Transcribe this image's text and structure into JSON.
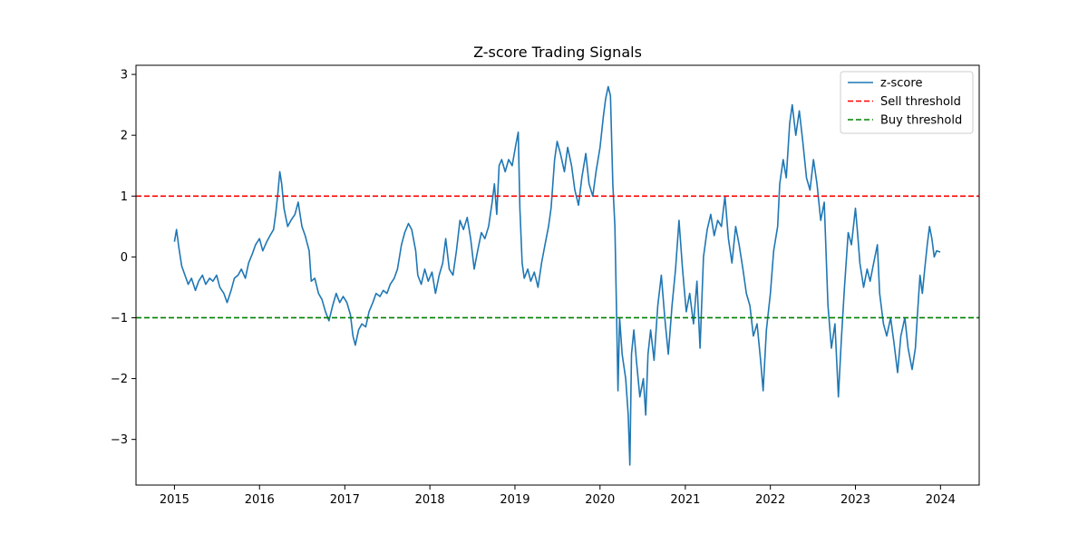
{
  "chart_data": {
    "type": "line",
    "title": "Z-score Trading Signals",
    "xlabel": "",
    "ylabel": "",
    "xlim": [
      "2014-07-20",
      "2024-06-15"
    ],
    "ylim": [
      -3.75,
      3.15
    ],
    "x_ticks": [
      "2015",
      "2016",
      "2017",
      "2018",
      "2019",
      "2020",
      "2021",
      "2022",
      "2023",
      "2024"
    ],
    "y_ticks": [
      3,
      2,
      1,
      0,
      -1,
      -2,
      -3
    ],
    "y_tick_labels": [
      "3",
      "2",
      "1",
      "0",
      "−1",
      "−2",
      "−3"
    ],
    "grid": false,
    "legend_position": "top-right",
    "series": [
      {
        "name": "z-score",
        "color": "#1f77b4",
        "style": "solid",
        "points": [
          [
            "2015-01-01",
            0.25
          ],
          [
            "2015-01-10",
            0.45
          ],
          [
            "2015-01-20",
            0.15
          ],
          [
            "2015-02-01",
            -0.15
          ],
          [
            "2015-02-15",
            -0.3
          ],
          [
            "2015-03-01",
            -0.45
          ],
          [
            "2015-03-15",
            -0.35
          ],
          [
            "2015-04-01",
            -0.55
          ],
          [
            "2015-04-15",
            -0.4
          ],
          [
            "2015-05-01",
            -0.3
          ],
          [
            "2015-05-15",
            -0.45
          ],
          [
            "2015-06-01",
            -0.35
          ],
          [
            "2015-06-15",
            -0.4
          ],
          [
            "2015-07-01",
            -0.3
          ],
          [
            "2015-07-15",
            -0.5
          ],
          [
            "2015-08-01",
            -0.6
          ],
          [
            "2015-08-15",
            -0.75
          ],
          [
            "2015-09-01",
            -0.55
          ],
          [
            "2015-09-15",
            -0.35
          ],
          [
            "2015-10-01",
            -0.3
          ],
          [
            "2015-10-15",
            -0.2
          ],
          [
            "2015-11-01",
            -0.35
          ],
          [
            "2015-11-15",
            -0.1
          ],
          [
            "2015-12-01",
            0.05
          ],
          [
            "2015-12-15",
            0.2
          ],
          [
            "2016-01-01",
            0.3
          ],
          [
            "2016-01-15",
            0.1
          ],
          [
            "2016-02-01",
            0.25
          ],
          [
            "2016-02-15",
            0.35
          ],
          [
            "2016-03-01",
            0.45
          ],
          [
            "2016-03-10",
            0.7
          ],
          [
            "2016-03-20",
            1.05
          ],
          [
            "2016-03-28",
            1.4
          ],
          [
            "2016-04-05",
            1.2
          ],
          [
            "2016-04-15",
            0.8
          ],
          [
            "2016-05-01",
            0.5
          ],
          [
            "2016-05-15",
            0.6
          ],
          [
            "2016-06-01",
            0.7
          ],
          [
            "2016-06-15",
            0.9
          ],
          [
            "2016-07-01",
            0.5
          ],
          [
            "2016-07-15",
            0.35
          ],
          [
            "2016-08-01",
            0.1
          ],
          [
            "2016-08-10",
            -0.4
          ],
          [
            "2016-08-25",
            -0.35
          ],
          [
            "2016-09-10",
            -0.6
          ],
          [
            "2016-09-25",
            -0.7
          ],
          [
            "2016-10-10",
            -0.9
          ],
          [
            "2016-10-25",
            -1.05
          ],
          [
            "2016-11-10",
            -0.8
          ],
          [
            "2016-11-25",
            -0.6
          ],
          [
            "2016-12-10",
            -0.75
          ],
          [
            "2016-12-25",
            -0.65
          ],
          [
            "2017-01-10",
            -0.75
          ],
          [
            "2017-01-25",
            -0.95
          ],
          [
            "2017-02-05",
            -1.3
          ],
          [
            "2017-02-15",
            -1.45
          ],
          [
            "2017-03-01",
            -1.2
          ],
          [
            "2017-03-15",
            -1.1
          ],
          [
            "2017-04-01",
            -1.15
          ],
          [
            "2017-04-15",
            -0.9
          ],
          [
            "2017-05-01",
            -0.75
          ],
          [
            "2017-05-15",
            -0.6
          ],
          [
            "2017-06-01",
            -0.65
          ],
          [
            "2017-06-15",
            -0.55
          ],
          [
            "2017-07-01",
            -0.6
          ],
          [
            "2017-07-15",
            -0.45
          ],
          [
            "2017-08-01",
            -0.35
          ],
          [
            "2017-08-15",
            -0.2
          ],
          [
            "2017-09-01",
            0.2
          ],
          [
            "2017-09-15",
            0.4
          ],
          [
            "2017-10-01",
            0.55
          ],
          [
            "2017-10-15",
            0.45
          ],
          [
            "2017-11-01",
            0.1
          ],
          [
            "2017-11-10",
            -0.3
          ],
          [
            "2017-11-25",
            -0.45
          ],
          [
            "2017-12-10",
            -0.2
          ],
          [
            "2017-12-25",
            -0.4
          ],
          [
            "2018-01-10",
            -0.25
          ],
          [
            "2018-01-25",
            -0.6
          ],
          [
            "2018-02-10",
            -0.3
          ],
          [
            "2018-02-25",
            -0.1
          ],
          [
            "2018-03-10",
            0.3
          ],
          [
            "2018-03-25",
            -0.2
          ],
          [
            "2018-04-10",
            -0.3
          ],
          [
            "2018-04-25",
            0.1
          ],
          [
            "2018-05-10",
            0.6
          ],
          [
            "2018-05-25",
            0.45
          ],
          [
            "2018-06-10",
            0.65
          ],
          [
            "2018-06-25",
            0.3
          ],
          [
            "2018-07-10",
            -0.2
          ],
          [
            "2018-07-25",
            0.1
          ],
          [
            "2018-08-10",
            0.4
          ],
          [
            "2018-08-25",
            0.3
          ],
          [
            "2018-09-10",
            0.5
          ],
          [
            "2018-09-25",
            0.9
          ],
          [
            "2018-10-05",
            1.2
          ],
          [
            "2018-10-15",
            0.7
          ],
          [
            "2018-10-25",
            1.5
          ],
          [
            "2018-11-05",
            1.6
          ],
          [
            "2018-11-20",
            1.4
          ],
          [
            "2018-12-05",
            1.6
          ],
          [
            "2018-12-20",
            1.5
          ],
          [
            "2019-01-05",
            1.85
          ],
          [
            "2019-01-15",
            2.05
          ],
          [
            "2019-01-22",
            0.8
          ],
          [
            "2019-02-01",
            -0.1
          ],
          [
            "2019-02-10",
            -0.35
          ],
          [
            "2019-02-25",
            -0.2
          ],
          [
            "2019-03-10",
            -0.4
          ],
          [
            "2019-03-25",
            -0.25
          ],
          [
            "2019-04-10",
            -0.5
          ],
          [
            "2019-04-25",
            -0.1
          ],
          [
            "2019-05-10",
            0.2
          ],
          [
            "2019-05-25",
            0.5
          ],
          [
            "2019-06-05",
            0.8
          ],
          [
            "2019-06-20",
            1.6
          ],
          [
            "2019-07-01",
            1.9
          ],
          [
            "2019-07-15",
            1.7
          ],
          [
            "2019-08-01",
            1.4
          ],
          [
            "2019-08-15",
            1.8
          ],
          [
            "2019-09-01",
            1.5
          ],
          [
            "2019-09-15",
            1.1
          ],
          [
            "2019-10-01",
            0.85
          ],
          [
            "2019-10-15",
            1.3
          ],
          [
            "2019-11-01",
            1.7
          ],
          [
            "2019-11-15",
            1.2
          ],
          [
            "2019-12-01",
            1.0
          ],
          [
            "2019-12-15",
            1.4
          ],
          [
            "2020-01-01",
            1.8
          ],
          [
            "2020-01-15",
            2.3
          ],
          [
            "2020-01-25",
            2.6
          ],
          [
            "2020-02-05",
            2.8
          ],
          [
            "2020-02-15",
            2.65
          ],
          [
            "2020-02-25",
            1.2
          ],
          [
            "2020-03-05",
            0.5
          ],
          [
            "2020-03-12",
            -0.9
          ],
          [
            "2020-03-18",
            -2.2
          ],
          [
            "2020-03-25",
            -1.0
          ],
          [
            "2020-04-05",
            -1.6
          ],
          [
            "2020-04-20",
            -2.0
          ],
          [
            "2020-05-01",
            -2.6
          ],
          [
            "2020-05-08",
            -3.42
          ],
          [
            "2020-05-15",
            -1.6
          ],
          [
            "2020-05-25",
            -1.2
          ],
          [
            "2020-06-05",
            -1.7
          ],
          [
            "2020-06-20",
            -2.3
          ],
          [
            "2020-07-05",
            -2.0
          ],
          [
            "2020-07-15",
            -2.6
          ],
          [
            "2020-07-25",
            -1.6
          ],
          [
            "2020-08-05",
            -1.2
          ],
          [
            "2020-08-20",
            -1.7
          ],
          [
            "2020-09-05",
            -0.8
          ],
          [
            "2020-09-20",
            -0.3
          ],
          [
            "2020-10-05",
            -1.0
          ],
          [
            "2020-10-20",
            -1.6
          ],
          [
            "2020-11-05",
            -0.8
          ],
          [
            "2020-11-20",
            -0.2
          ],
          [
            "2020-12-05",
            0.6
          ],
          [
            "2020-12-20",
            -0.2
          ],
          [
            "2021-01-05",
            -0.9
          ],
          [
            "2021-01-20",
            -0.6
          ],
          [
            "2021-02-05",
            -1.1
          ],
          [
            "2021-02-20",
            -0.4
          ],
          [
            "2021-03-05",
            -1.5
          ],
          [
            "2021-03-20",
            0.0
          ],
          [
            "2021-04-05",
            0.45
          ],
          [
            "2021-04-20",
            0.7
          ],
          [
            "2021-05-05",
            0.35
          ],
          [
            "2021-05-20",
            0.6
          ],
          [
            "2021-06-05",
            0.5
          ],
          [
            "2021-06-20",
            1.0
          ],
          [
            "2021-07-05",
            0.3
          ],
          [
            "2021-07-20",
            -0.1
          ],
          [
            "2021-08-05",
            0.5
          ],
          [
            "2021-08-20",
            0.2
          ],
          [
            "2021-09-05",
            -0.2
          ],
          [
            "2021-09-20",
            -0.6
          ],
          [
            "2021-10-05",
            -0.8
          ],
          [
            "2021-10-20",
            -1.3
          ],
          [
            "2021-11-05",
            -1.1
          ],
          [
            "2021-11-20",
            -1.7
          ],
          [
            "2021-12-01",
            -2.2
          ],
          [
            "2021-12-15",
            -1.2
          ],
          [
            "2022-01-01",
            -0.6
          ],
          [
            "2022-01-15",
            0.1
          ],
          [
            "2022-02-01",
            0.5
          ],
          [
            "2022-02-10",
            1.2
          ],
          [
            "2022-02-25",
            1.6
          ],
          [
            "2022-03-10",
            1.3
          ],
          [
            "2022-03-25",
            2.2
          ],
          [
            "2022-04-05",
            2.5
          ],
          [
            "2022-04-20",
            2.0
          ],
          [
            "2022-05-05",
            2.4
          ],
          [
            "2022-05-20",
            1.9
          ],
          [
            "2022-06-05",
            1.3
          ],
          [
            "2022-06-20",
            1.1
          ],
          [
            "2022-07-05",
            1.6
          ],
          [
            "2022-07-20",
            1.2
          ],
          [
            "2022-08-05",
            0.6
          ],
          [
            "2022-08-20",
            0.9
          ],
          [
            "2022-09-05",
            -0.8
          ],
          [
            "2022-09-20",
            -1.5
          ],
          [
            "2022-10-05",
            -1.1
          ],
          [
            "2022-10-20",
            -2.3
          ],
          [
            "2022-11-01",
            -1.4
          ],
          [
            "2022-11-15",
            -0.5
          ],
          [
            "2022-12-01",
            0.4
          ],
          [
            "2022-12-15",
            0.2
          ],
          [
            "2023-01-01",
            0.8
          ],
          [
            "2023-01-10",
            0.4
          ],
          [
            "2023-01-20",
            -0.1
          ],
          [
            "2023-02-05",
            -0.5
          ],
          [
            "2023-02-20",
            -0.2
          ],
          [
            "2023-03-05",
            -0.4
          ],
          [
            "2023-03-20",
            -0.1
          ],
          [
            "2023-04-05",
            0.2
          ],
          [
            "2023-04-15",
            -0.6
          ],
          [
            "2023-05-01",
            -1.1
          ],
          [
            "2023-05-15",
            -1.3
          ],
          [
            "2023-06-01",
            -1.0
          ],
          [
            "2023-06-15",
            -1.4
          ],
          [
            "2023-07-01",
            -1.9
          ],
          [
            "2023-07-15",
            -1.3
          ],
          [
            "2023-08-01",
            -1.0
          ],
          [
            "2023-08-15",
            -1.5
          ],
          [
            "2023-09-01",
            -1.85
          ],
          [
            "2023-09-15",
            -1.5
          ],
          [
            "2023-09-25",
            -0.9
          ],
          [
            "2023-10-05",
            -0.3
          ],
          [
            "2023-10-15",
            -0.6
          ],
          [
            "2023-10-25",
            -0.2
          ],
          [
            "2023-11-05",
            0.2
          ],
          [
            "2023-11-15",
            0.5
          ],
          [
            "2023-11-25",
            0.3
          ],
          [
            "2023-12-05",
            0.0
          ],
          [
            "2023-12-15",
            0.1
          ],
          [
            "2023-12-31",
            0.08
          ]
        ]
      },
      {
        "name": "Sell threshold",
        "color": "#ff0000",
        "style": "dashed",
        "y": 1
      },
      {
        "name": "Buy threshold",
        "color": "#008000",
        "style": "dashed",
        "y": -1
      }
    ]
  }
}
